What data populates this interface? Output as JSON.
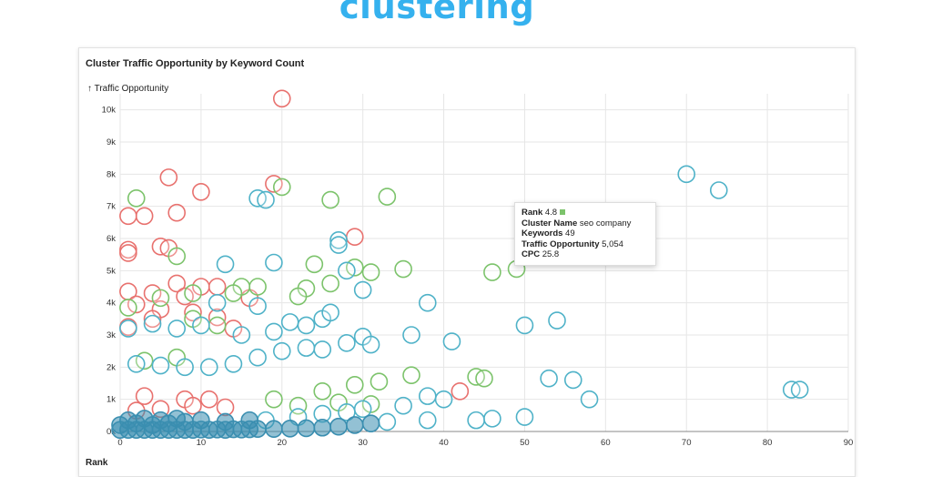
{
  "heading": "clustering",
  "chart_data": {
    "type": "scatter",
    "title": "Cluster Traffic Opportunity by Keyword Count",
    "ylabel": "↑ Traffic Opportunity",
    "xlabel": "Rank",
    "xlim": [
      0,
      90
    ],
    "ylim": [
      0,
      10500
    ],
    "xticks": [
      "0",
      "10",
      "20",
      "30",
      "40",
      "50",
      "60",
      "70",
      "80",
      "90"
    ],
    "yticks": [
      "0k",
      "1k",
      "2k",
      "3k",
      "4k",
      "5k",
      "6k",
      "7k",
      "8k",
      "9k",
      "10k"
    ],
    "grid": true,
    "colors": {
      "red": "#e8716e",
      "green": "#7cc36b",
      "teal": "#4fb2c8",
      "dark": "#3a8eb0"
    },
    "series": [
      {
        "group": "red",
        "points": [
          [
            20,
            10350
          ],
          [
            6,
            7900
          ],
          [
            19,
            7700
          ],
          [
            10,
            7450
          ],
          [
            1,
            6700
          ],
          [
            3,
            6700
          ],
          [
            7,
            6800
          ],
          [
            29,
            6050
          ],
          [
            1,
            5650
          ],
          [
            5,
            5750
          ],
          [
            6,
            5700
          ],
          [
            1,
            5550
          ],
          [
            12,
            4500
          ],
          [
            7,
            4600
          ],
          [
            10,
            4500
          ],
          [
            1,
            4350
          ],
          [
            4,
            4300
          ],
          [
            8,
            4200
          ],
          [
            16,
            4150
          ],
          [
            2,
            3950
          ],
          [
            5,
            3800
          ],
          [
            9,
            3700
          ],
          [
            12,
            3550
          ],
          [
            4,
            3500
          ],
          [
            1,
            3250
          ],
          [
            14,
            3200
          ],
          [
            3,
            1100
          ],
          [
            8,
            1000
          ],
          [
            11,
            1000
          ],
          [
            42,
            1250
          ],
          [
            2,
            650
          ],
          [
            5,
            700
          ],
          [
            9,
            800
          ],
          [
            13,
            750
          ]
        ]
      },
      {
        "group": "green",
        "points": [
          [
            2,
            7250
          ],
          [
            20,
            7600
          ],
          [
            26,
            7200
          ],
          [
            33,
            7300
          ],
          [
            7,
            5450
          ],
          [
            24,
            5200
          ],
          [
            29,
            5100
          ],
          [
            31,
            4950
          ],
          [
            35,
            5050
          ],
          [
            46,
            4950
          ],
          [
            49,
            5054
          ],
          [
            15,
            4500
          ],
          [
            23,
            4450
          ],
          [
            26,
            4600
          ],
          [
            5,
            4150
          ],
          [
            9,
            4300
          ],
          [
            17,
            4500
          ],
          [
            14,
            4300
          ],
          [
            22,
            4200
          ],
          [
            1,
            3850
          ],
          [
            9,
            3500
          ],
          [
            12,
            3300
          ],
          [
            25,
            1250
          ],
          [
            29,
            1450
          ],
          [
            32,
            1550
          ],
          [
            36,
            1750
          ],
          [
            44,
            1700
          ],
          [
            45,
            1650
          ],
          [
            3,
            2200
          ],
          [
            7,
            2300
          ],
          [
            19,
            1000
          ],
          [
            22,
            800
          ],
          [
            27,
            900
          ],
          [
            31,
            850
          ]
        ]
      },
      {
        "group": "teal",
        "points": [
          [
            70,
            8000
          ],
          [
            74,
            7500
          ],
          [
            17,
            7250
          ],
          [
            18,
            7200
          ],
          [
            27,
            5950
          ],
          [
            27,
            5800
          ],
          [
            19,
            5250
          ],
          [
            13,
            5200
          ],
          [
            28,
            5000
          ],
          [
            30,
            4400
          ],
          [
            12,
            4000
          ],
          [
            17,
            3900
          ],
          [
            38,
            4000
          ],
          [
            21,
            3400
          ],
          [
            25,
            3500
          ],
          [
            23,
            3300
          ],
          [
            26,
            3700
          ],
          [
            50,
            3300
          ],
          [
            54,
            3450
          ],
          [
            36,
            3000
          ],
          [
            41,
            2800
          ],
          [
            30,
            2950
          ],
          [
            28,
            2750
          ],
          [
            31,
            2700
          ],
          [
            1,
            3200
          ],
          [
            4,
            3350
          ],
          [
            7,
            3200
          ],
          [
            10,
            3300
          ],
          [
            15,
            3000
          ],
          [
            19,
            3100
          ],
          [
            2,
            2100
          ],
          [
            5,
            2050
          ],
          [
            8,
            2000
          ],
          [
            11,
            2000
          ],
          [
            14,
            2100
          ],
          [
            17,
            2300
          ],
          [
            20,
            2500
          ],
          [
            23,
            2600
          ],
          [
            25,
            2550
          ],
          [
            53,
            1650
          ],
          [
            56,
            1600
          ],
          [
            58,
            1000
          ],
          [
            83,
            1300
          ],
          [
            84,
            1300
          ],
          [
            38,
            1100
          ],
          [
            40,
            1000
          ],
          [
            35,
            800
          ],
          [
            30,
            700
          ],
          [
            44,
            350
          ],
          [
            46,
            400
          ],
          [
            50,
            450
          ],
          [
            33,
            300
          ],
          [
            38,
            350
          ],
          [
            28,
            600
          ],
          [
            25,
            550
          ],
          [
            22,
            450
          ],
          [
            18,
            350
          ]
        ]
      },
      {
        "group": "dark",
        "points": [
          [
            0,
            50
          ],
          [
            1,
            50
          ],
          [
            2,
            50
          ],
          [
            3,
            50
          ],
          [
            4,
            50
          ],
          [
            5,
            50
          ],
          [
            6,
            50
          ],
          [
            7,
            50
          ],
          [
            8,
            50
          ],
          [
            9,
            50
          ],
          [
            10,
            60
          ],
          [
            11,
            50
          ],
          [
            12,
            60
          ],
          [
            13,
            50
          ],
          [
            14,
            70
          ],
          [
            15,
            60
          ],
          [
            16,
            70
          ],
          [
            17,
            80
          ],
          [
            19,
            80
          ],
          [
            21,
            90
          ],
          [
            23,
            100
          ],
          [
            25,
            120
          ],
          [
            27,
            150
          ],
          [
            29,
            200
          ],
          [
            31,
            250
          ],
          [
            0,
            200
          ],
          [
            2,
            250
          ],
          [
            4,
            200
          ],
          [
            6,
            250
          ],
          [
            8,
            300
          ],
          [
            1,
            350
          ],
          [
            3,
            400
          ],
          [
            5,
            350
          ],
          [
            7,
            400
          ],
          [
            10,
            350
          ],
          [
            13,
            300
          ],
          [
            16,
            350
          ]
        ]
      }
    ],
    "tooltip": {
      "rank_label": "Rank",
      "rank_value": "4.8",
      "name_label": "Cluster Name",
      "name_value": "seo company",
      "keywords_label": "Keywords",
      "keywords_value": "49",
      "traffic_label": "Traffic Opportunity",
      "traffic_value": "5,054",
      "cpc_label": "CPC",
      "cpc_value": "25.8"
    }
  }
}
